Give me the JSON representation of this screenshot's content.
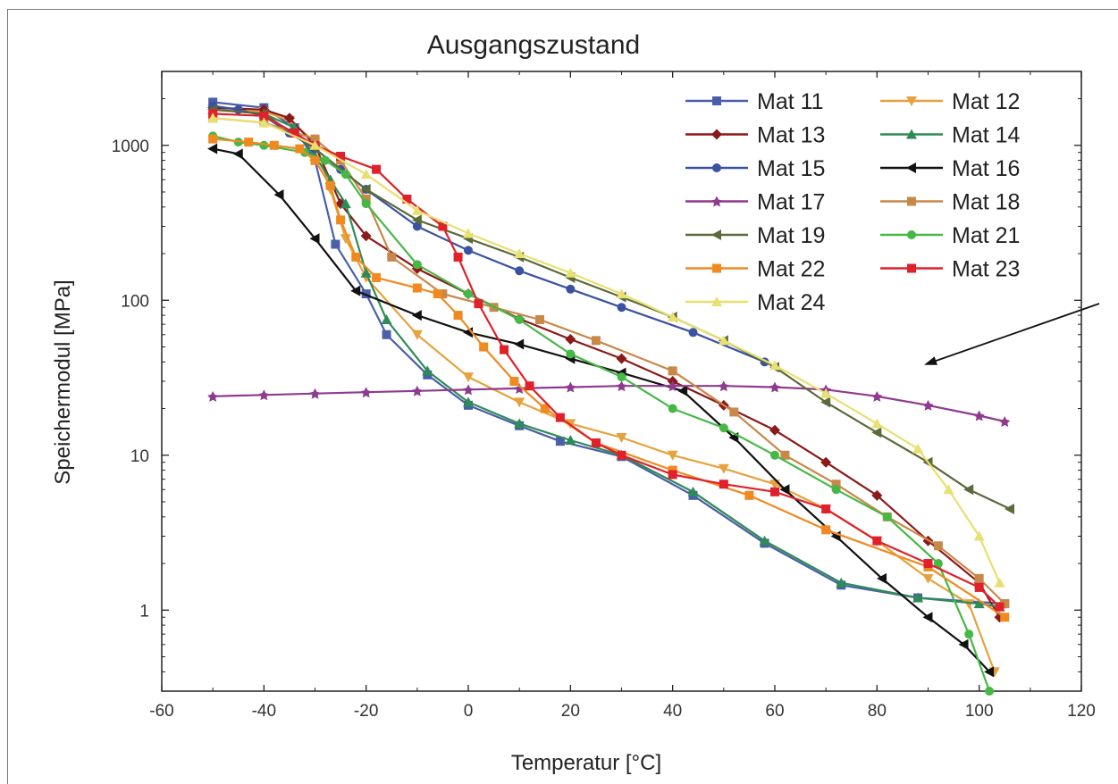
{
  "chart_data": {
    "type": "line",
    "title": "Ausgangszustand",
    "xlabel": "Temperatur [°C]",
    "ylabel": "Speichermodul [MPa]",
    "xlim": [
      -60,
      120
    ],
    "ylim": [
      0.3,
      3000
    ],
    "yscale": "log",
    "x_ticks": [
      -60,
      -40,
      -20,
      0,
      20,
      40,
      60,
      80,
      100,
      120
    ],
    "y_ticks": [
      1,
      10,
      100,
      1000
    ],
    "x_tick_labels": [
      "-60",
      "-40",
      "-20",
      "0",
      "20",
      "40",
      "60",
      "80",
      "100",
      "120"
    ],
    "y_tick_labels": [
      "1",
      "10",
      "100",
      "1000"
    ],
    "legend_position": "top-right",
    "series": [
      {
        "name": "Mat 11",
        "color": "#4a5fa8",
        "marker": "square",
        "x": [
          -50,
          -40,
          -34,
          -30,
          -26,
          -20,
          -16,
          -8,
          0,
          10,
          18,
          30,
          44,
          58,
          73,
          88,
          105
        ],
        "y": [
          1900,
          1750,
          1300,
          800,
          230,
          110,
          60,
          33,
          21,
          15.5,
          12.3,
          9.8,
          5.5,
          2.7,
          1.45,
          1.2,
          1.1
        ]
      },
      {
        "name": "Mat 12",
        "color": "#e6a23c",
        "marker": "triangle-down",
        "x": [
          -50,
          -40,
          -35,
          -30,
          -27,
          -24,
          -20,
          -10,
          0,
          10,
          20,
          30,
          40,
          50,
          60,
          70,
          80,
          90,
          98,
          103
        ],
        "y": [
          1700,
          1650,
          1450,
          1050,
          520,
          250,
          140,
          60,
          32,
          22,
          16,
          13,
          10,
          8.2,
          6.5,
          4.5,
          2.8,
          1.6,
          1.1,
          0.4
        ]
      },
      {
        "name": "Mat 13",
        "color": "#8b1a1a",
        "marker": "diamond",
        "x": [
          -50,
          -40,
          -35,
          -30,
          -25,
          -20,
          -10,
          0,
          10,
          20,
          30,
          40,
          50,
          60,
          70,
          80,
          90,
          100,
          104
        ],
        "y": [
          1750,
          1700,
          1500,
          1000,
          420,
          260,
          160,
          110,
          76,
          56,
          42,
          30,
          21,
          14.5,
          9,
          5.5,
          2.8,
          1.5,
          0.9
        ]
      },
      {
        "name": "Mat 14",
        "color": "#2e8b57",
        "marker": "triangle-up",
        "x": [
          -50,
          -40,
          -34,
          -30,
          -27,
          -24,
          -20,
          -16,
          -8,
          0,
          10,
          20,
          30,
          44,
          58,
          73,
          88,
          100,
          104
        ],
        "y": [
          1700,
          1600,
          1300,
          850,
          600,
          420,
          150,
          75,
          35,
          22,
          16,
          12.5,
          10,
          5.8,
          2.8,
          1.5,
          1.2,
          1.1,
          1.05
        ]
      },
      {
        "name": "Mat 15",
        "color": "#3a52a0",
        "marker": "circle",
        "x": [
          -50,
          -45,
          -40,
          -35,
          -30,
          -25,
          -20,
          -10,
          0,
          10,
          20,
          30,
          44,
          58
        ],
        "y": [
          1800,
          1700,
          1550,
          1200,
          950,
          700,
          520,
          300,
          210,
          155,
          118,
          90,
          62,
          40
        ]
      },
      {
        "name": "Mat 16",
        "color": "#111111",
        "marker": "triangle-left",
        "x": [
          -50,
          -45,
          -37,
          -30,
          -22,
          -10,
          0,
          10,
          20,
          30,
          42,
          52,
          62,
          72,
          81,
          90,
          97,
          102
        ],
        "y": [
          950,
          880,
          480,
          250,
          115,
          80,
          62,
          52,
          42,
          34,
          26,
          13,
          6,
          3,
          1.6,
          0.9,
          0.6,
          0.4
        ]
      },
      {
        "name": "Mat 17",
        "color": "#8e3a8e",
        "marker": "star",
        "x": [
          -50,
          -40,
          -30,
          -20,
          -10,
          0,
          10,
          20,
          30,
          40,
          50,
          60,
          70,
          80,
          90,
          100,
          105
        ],
        "y": [
          24,
          24.5,
          25,
          25.5,
          26,
          26.5,
          27,
          27.5,
          28,
          28,
          28,
          27.5,
          26.5,
          24,
          21,
          18,
          16.5
        ]
      },
      {
        "name": "Mat 18",
        "color": "#c8884a",
        "marker": "square",
        "x": [
          -50,
          -40,
          -30,
          -25,
          -20,
          -15,
          -5,
          5,
          14,
          25,
          40,
          52,
          62,
          72,
          82,
          92,
          100,
          105
        ],
        "y": [
          1500,
          1400,
          1100,
          800,
          450,
          190,
          110,
          90,
          75,
          55,
          35,
          19,
          10,
          6.5,
          4,
          2.6,
          1.6,
          1.1
        ]
      },
      {
        "name": "Mat 19",
        "color": "#5a6a3a",
        "marker": "triangle-left",
        "x": [
          -50,
          -40,
          -30,
          -20,
          -10,
          0,
          10,
          20,
          30,
          40,
          50,
          60,
          70,
          80,
          90,
          98,
          106
        ],
        "y": [
          1700,
          1600,
          950,
          520,
          330,
          250,
          190,
          140,
          105,
          78,
          55,
          37,
          22,
          14,
          9,
          6,
          4.5
        ]
      },
      {
        "name": "Mat 21",
        "color": "#46b846",
        "marker": "circle",
        "x": [
          -50,
          -45,
          -40,
          -32,
          -28,
          -24,
          -20,
          -10,
          0,
          10,
          20,
          30,
          40,
          50,
          60,
          72,
          82,
          92,
          98,
          102
        ],
        "y": [
          1150,
          1050,
          1000,
          900,
          800,
          650,
          420,
          170,
          110,
          75,
          45,
          32,
          20,
          15,
          10,
          6,
          4,
          2,
          0.7,
          0.3
        ]
      },
      {
        "name": "Mat 22",
        "color": "#f08a20",
        "marker": "square",
        "x": [
          -50,
          -43,
          -38,
          -33,
          -30,
          -27,
          -25,
          -22,
          -18,
          -10,
          -6,
          -2,
          3,
          9,
          15,
          25,
          40,
          55,
          70,
          90,
          105
        ],
        "y": [
          1100,
          1050,
          1000,
          950,
          800,
          550,
          330,
          190,
          140,
          120,
          110,
          80,
          50,
          30,
          20,
          12,
          8,
          5.5,
          3.3,
          1.9,
          0.9
        ]
      },
      {
        "name": "Mat 23",
        "color": "#e0202a",
        "marker": "square",
        "x": [
          -50,
          -40,
          -34,
          -30,
          -25,
          -18,
          -12,
          -5,
          -2,
          2,
          7,
          12,
          18,
          25,
          30,
          40,
          50,
          60,
          70,
          80,
          90,
          100,
          104
        ],
        "y": [
          1600,
          1550,
          1200,
          1000,
          850,
          700,
          450,
          300,
          190,
          95,
          48,
          28,
          17.5,
          12,
          10,
          7.5,
          6.5,
          5.8,
          4.5,
          2.8,
          2,
          1.4,
          1.05
        ]
      },
      {
        "name": "Mat 24",
        "color": "#e8e070",
        "marker": "triangle-up",
        "x": [
          -50,
          -40,
          -30,
          -20,
          -10,
          0,
          10,
          20,
          30,
          40,
          50,
          60,
          70,
          80,
          88,
          94,
          100,
          104
        ],
        "y": [
          1500,
          1400,
          1000,
          650,
          380,
          270,
          200,
          150,
          110,
          78,
          55,
          38,
          25,
          16,
          11,
          6,
          3,
          1.5
        ]
      }
    ],
    "annotation": {
      "type": "arrow",
      "from": [
        113,
        210
      ],
      "to": [
        64,
        35
      ]
    }
  }
}
